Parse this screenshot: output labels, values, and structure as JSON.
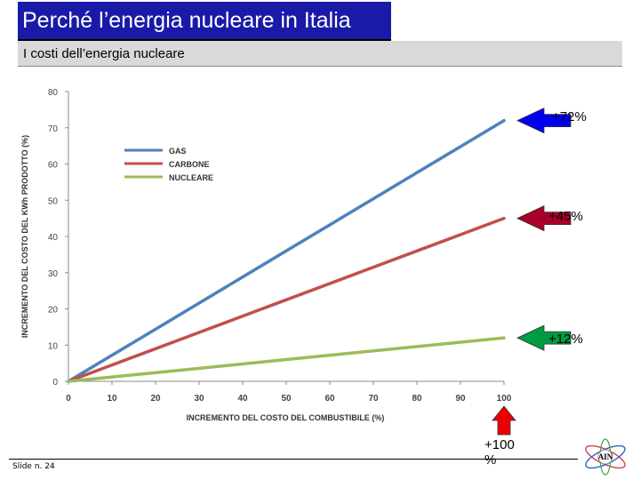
{
  "header": {
    "title": "Perché l’energia nucleare in Italia"
  },
  "subheader": {
    "title": "I costi dell’energia nucleare"
  },
  "footer": {
    "slide_label": "Slide n. 24"
  },
  "logo": {
    "text": "AIN"
  },
  "colors": {
    "gas": "#4f81bd",
    "carbone": "#c0504d",
    "nucleare": "#9bbb59",
    "arrow_gas": "#0000ee",
    "arrow_carbone": "#a8002a",
    "arrow_nucleare": "#009a44",
    "arrow_x": "#ee0000"
  },
  "annotations": {
    "gas": "+72%",
    "carbone": "+45%",
    "nucleare": "+12%",
    "x": "+100 %"
  },
  "chart_data": {
    "type": "line",
    "xlabel": "INCREMENTO DEL COSTO DEL COMBUSTIBILE (%)",
    "ylabel": "INCREMENTO DEL COSTO DEL KWh PRODOTTO (%)",
    "xlim": [
      0,
      100
    ],
    "ylim": [
      0,
      80
    ],
    "xticks": [
      "0",
      "10",
      "20",
      "30",
      "40",
      "50",
      "60",
      "70",
      "80",
      "90",
      "100"
    ],
    "yticks": [
      "0",
      "10",
      "20",
      "30",
      "40",
      "50",
      "60",
      "70",
      "80"
    ],
    "grid": false,
    "legend": "top-left",
    "series": [
      {
        "name": "GAS",
        "x": [
          0,
          10,
          20,
          30,
          40,
          50,
          60,
          70,
          80,
          90,
          100
        ],
        "values": [
          0,
          7.2,
          14.4,
          21.6,
          28.8,
          36,
          43.2,
          50.4,
          57.6,
          64.8,
          72
        ]
      },
      {
        "name": "CARBONE",
        "x": [
          0,
          10,
          20,
          30,
          40,
          50,
          60,
          70,
          80,
          90,
          100
        ],
        "values": [
          0,
          4.5,
          9,
          13.5,
          18,
          22.5,
          27,
          31.5,
          36,
          40.5,
          45
        ]
      },
      {
        "name": "NUCLEARE",
        "x": [
          0,
          10,
          20,
          30,
          40,
          50,
          60,
          70,
          80,
          90,
          100
        ],
        "values": [
          0,
          1.2,
          2.4,
          3.6,
          4.8,
          6,
          7.2,
          8.4,
          9.6,
          10.8,
          12
        ]
      }
    ]
  }
}
